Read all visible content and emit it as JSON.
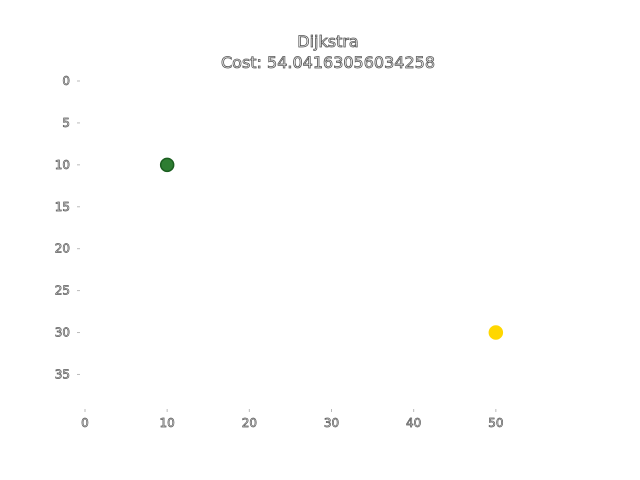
{
  "chart_data": {
    "type": "scatter",
    "title": "Dijkstra",
    "subtitle": "Cost: 54.04163056034258",
    "xlabel": "",
    "ylabel": "",
    "xlim": [
      0,
      60
    ],
    "ylim": [
      39,
      0
    ],
    "y_inverted": true,
    "x_ticks": [
      0,
      10,
      20,
      30,
      40,
      50
    ],
    "y_ticks": [
      0,
      5,
      10,
      15,
      20,
      25,
      30,
      35
    ],
    "grid": false,
    "points": [
      {
        "x": 10,
        "y": 10,
        "color": "#2e7d32",
        "edge_color": "#1b5e20"
      },
      {
        "x": 50,
        "y": 30,
        "color": "#ffd700",
        "edge_color": "#ffd700"
      }
    ]
  }
}
